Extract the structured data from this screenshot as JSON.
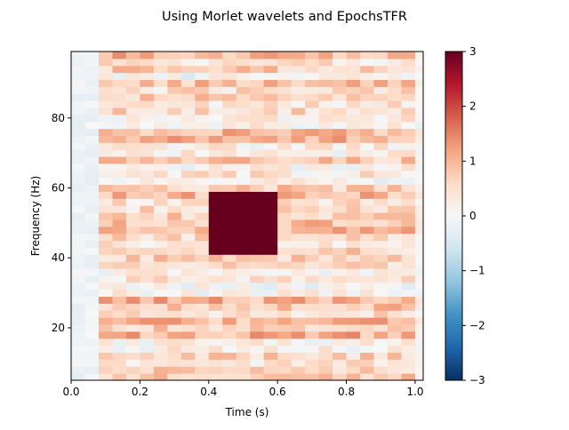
{
  "chart_data": {
    "type": "heatmap",
    "title": "Using Morlet wavelets and EpochsTFR",
    "xlabel": "Time (s)",
    "ylabel": "Frequency (Hz)",
    "xlim": [
      0.0,
      1.0234
    ],
    "ylim": [
      5.0,
      99.0
    ],
    "x_ticks": [
      "0.0",
      "0.2",
      "0.4",
      "0.6",
      "0.8",
      "1.0"
    ],
    "x_tick_values": [
      0.0,
      0.2,
      0.4,
      0.6,
      0.8,
      1.0
    ],
    "y_ticks": [
      "20",
      "40",
      "60",
      "80"
    ],
    "y_tick_values": [
      20,
      40,
      60,
      80
    ],
    "colormap": "RdBu_r",
    "clim": [
      -3,
      3
    ],
    "colorbar_ticks": [
      "3",
      "2",
      "1",
      "0",
      "−1",
      "−2",
      "−3"
    ],
    "colorbar_tick_values": [
      3,
      2,
      1,
      0,
      -1,
      -2,
      -3
    ],
    "frequencies": [
      6,
      8,
      10,
      12,
      14,
      16,
      18,
      20,
      22,
      24,
      26,
      28,
      30,
      32,
      34,
      36,
      38,
      40,
      42,
      44,
      46,
      48,
      50,
      52,
      54,
      56,
      58,
      60,
      62,
      64,
      66,
      68,
      70,
      72,
      74,
      76,
      78,
      80,
      82,
      84,
      86,
      88,
      90,
      92,
      94,
      96,
      98
    ],
    "times": [
      0.0,
      0.04,
      0.08,
      0.12,
      0.16,
      0.2,
      0.24,
      0.28,
      0.32,
      0.36,
      0.4,
      0.44,
      0.48,
      0.52,
      0.56,
      0.6,
      0.64,
      0.68,
      0.72,
      0.76,
      0.8,
      0.84,
      0.88,
      0.92,
      0.96,
      1.0
    ],
    "burst": {
      "t_start": 0.4,
      "t_end": 0.6,
      "f_start": 40,
      "f_end": 60,
      "value": 3
    },
    "background_range": [
      -0.5,
      1.5
    ],
    "background_typical": 0.6
  },
  "colors": {
    "cmap_low": "#053061",
    "cmap_mid": "#f7f7f7",
    "cmap_high": "#67001f"
  }
}
